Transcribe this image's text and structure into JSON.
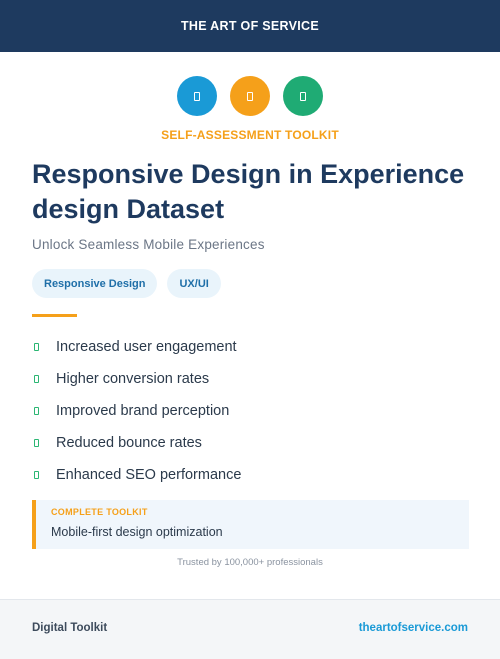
{
  "header": {
    "brand": "THE ART OF SERVICE"
  },
  "icons": [
    {
      "name": "mobile-icon",
      "color": "#1a9ad6"
    },
    {
      "name": "tablet-icon",
      "color": "#f5a01a"
    },
    {
      "name": "desktop-icon",
      "color": "#1fab74"
    }
  ],
  "kicker": "SELF-ASSESSMENT TOOLKIT",
  "title": "Responsive Design in Experience design Dataset",
  "subtitle": "Unlock Seamless Mobile Experiences",
  "tags": [
    "Responsive Design",
    "UX/UI"
  ],
  "benefits": [
    "Increased user engagement",
    "Higher conversion rates",
    "Improved brand perception",
    "Reduced bounce rates",
    "Enhanced SEO performance"
  ],
  "callout": {
    "label": "COMPLETE TOOLKIT",
    "text": "Mobile-first design optimization"
  },
  "trusted": "Trusted by 100,000+ professionals",
  "footer": {
    "left": "Digital Toolkit",
    "right": "theartofservice.com"
  },
  "colors": {
    "navy": "#1e3a5f",
    "orange": "#f5a01a",
    "blue": "#1a9ad6",
    "green": "#1fab74"
  }
}
